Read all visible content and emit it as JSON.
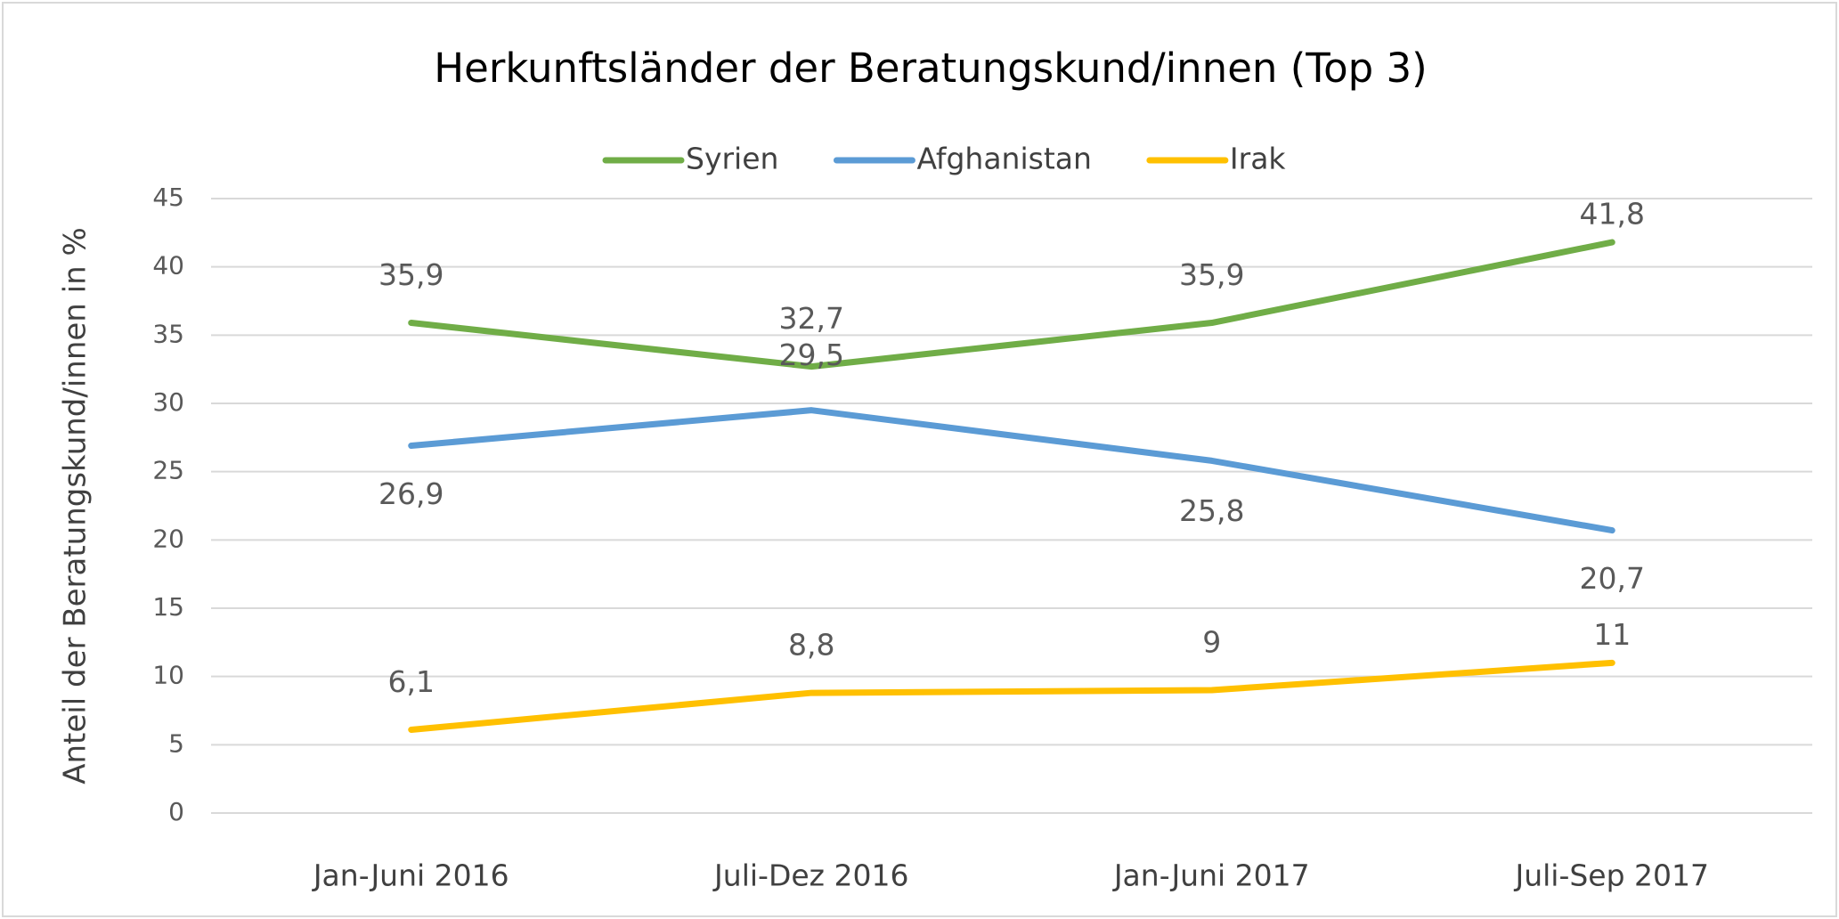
{
  "chart_data": {
    "type": "line",
    "title": "Herkunftsländer der Beratungskund/innen (Top 3)",
    "y_label": "Anteil der Beratungskund/innen in %",
    "categories": [
      "Jan-Juni 2016",
      "Juli-Dez 2016",
      "Jan-Juni 2017",
      "Juli-Sep 2017"
    ],
    "series": [
      {
        "name": "Syrien",
        "color": "#70ad47",
        "values": [
          35.9,
          32.7,
          35.9,
          41.8
        ],
        "value_labels": [
          "35,9",
          "32,7",
          "35,9",
          "41,8"
        ]
      },
      {
        "name": "Afghanistan",
        "color": "#5b9bd5",
        "values": [
          26.9,
          29.5,
          25.8,
          20.7
        ],
        "value_labels": [
          "26,9",
          "29,5",
          "25,8",
          "20,7"
        ]
      },
      {
        "name": "Irak",
        "color": "#ffc000",
        "values": [
          6.1,
          8.8,
          9,
          11
        ],
        "value_labels": [
          "6,1",
          "8,8",
          "9",
          "11"
        ]
      }
    ],
    "ylim": [
      0,
      45
    ],
    "yticks": [
      0,
      5,
      10,
      15,
      20,
      25,
      30,
      35,
      40,
      45
    ],
    "grid": true,
    "legend": "top"
  }
}
